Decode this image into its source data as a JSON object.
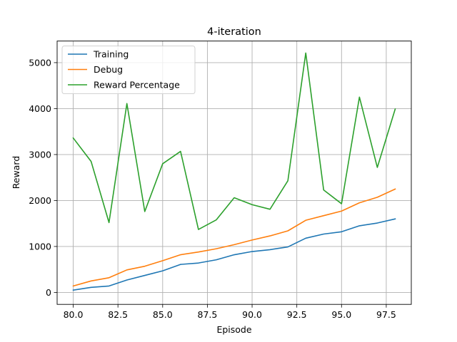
{
  "chart_data": {
    "type": "line",
    "title": "4-iteration",
    "xlabel": "Episode",
    "ylabel": "Reward",
    "xlim": [
      79.1,
      98.9
    ],
    "ylim": [
      -260,
      5470
    ],
    "xticks": [
      80.0,
      82.5,
      85.0,
      87.5,
      90.0,
      92.5,
      95.0,
      97.5
    ],
    "xtick_labels": [
      "80.0",
      "82.5",
      "85.0",
      "87.5",
      "90.0",
      "92.5",
      "95.0",
      "97.5"
    ],
    "yticks": [
      0,
      1000,
      2000,
      3000,
      4000,
      5000
    ],
    "ytick_labels": [
      "0",
      "1000",
      "2000",
      "3000",
      "4000",
      "5000"
    ],
    "grid": true,
    "legend_position": "top-left",
    "x": [
      80,
      81,
      82,
      83,
      84,
      85,
      86,
      87,
      88,
      89,
      90,
      91,
      92,
      93,
      94,
      95,
      96,
      97,
      98
    ],
    "series": [
      {
        "name": "Training",
        "color": "#1f77b4",
        "values": [
          50,
          110,
          140,
          270,
          370,
          470,
          610,
          640,
          710,
          820,
          890,
          930,
          990,
          1180,
          1270,
          1320,
          1450,
          1510,
          1600
        ]
      },
      {
        "name": "Debug",
        "color": "#ff7f0e",
        "values": [
          140,
          250,
          320,
          490,
          570,
          690,
          820,
          880,
          950,
          1040,
          1140,
          1230,
          1340,
          1570,
          1670,
          1770,
          1950,
          2070,
          2250
        ]
      },
      {
        "name": "Reward Percentage",
        "color": "#2ca02c",
        "values": [
          3360,
          2850,
          1520,
          4110,
          1760,
          2800,
          3070,
          1370,
          1580,
          2060,
          1910,
          1810,
          2430,
          5210,
          2230,
          1930,
          4250,
          2720,
          3990
        ]
      }
    ]
  }
}
